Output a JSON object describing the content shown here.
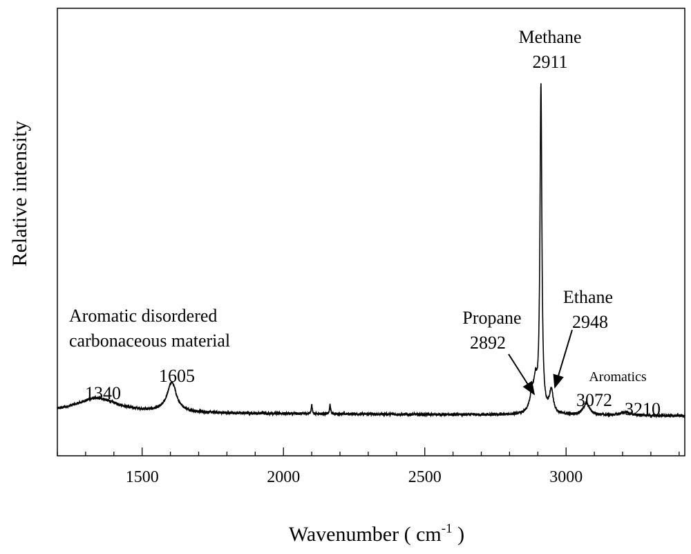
{
  "chart_data": {
    "type": "line",
    "xlabel": "Wavenumber ( cm",
    "xlabel_sup": "-1",
    "xlabel_close": " )",
    "ylabel": "Relative intensity",
    "xlim": [
      1200,
      3420
    ],
    "ylim": [
      -0.12,
      1.25
    ],
    "x_ticks": [
      1500,
      2000,
      2500,
      3000
    ],
    "x_minor_step": 100,
    "y_ticks_shown": false,
    "grid": false,
    "legend": "none",
    "line_color": "#000000",
    "peaks": [
      {
        "x": 1340,
        "height": 0.045,
        "width": 90
      },
      {
        "x": 1605,
        "height": 0.09,
        "width": 20
      },
      {
        "x": 2100,
        "height": 0.03,
        "width": 2
      },
      {
        "x": 2165,
        "height": 0.03,
        "width": 2
      },
      {
        "x": 2880,
        "height": 0.055,
        "width": 10
      },
      {
        "x": 2892,
        "height": 0.075,
        "width": 7
      },
      {
        "x": 2911,
        "height": 1.0,
        "width": 4
      },
      {
        "x": 2948,
        "height": 0.07,
        "width": 8
      },
      {
        "x": 3072,
        "height": 0.035,
        "width": 14
      },
      {
        "x": 3210,
        "height": 0.01,
        "width": 20
      }
    ],
    "annotations": [
      {
        "text": "Methane",
        "x": 2911,
        "font": 26
      },
      {
        "text": "2911",
        "x": 2911,
        "font": 26
      },
      {
        "text": "Ethane",
        "x": 2966,
        "font": 26
      },
      {
        "text": "2948",
        "x": 2966,
        "font": 26
      },
      {
        "text": "Propane",
        "x": 2780,
        "font": 26
      },
      {
        "text": "2892",
        "x": 2780,
        "font": 26
      },
      {
        "text": "Aromatics",
        "x": 3100,
        "font": 20
      },
      {
        "text": "3072",
        "x": 3082,
        "font": 26
      },
      {
        "text": "3210",
        "x": 3210,
        "font": 26
      },
      {
        "text": "1340",
        "x": 1340,
        "font": 26
      },
      {
        "text": "1605",
        "x": 1605,
        "font": 26
      },
      {
        "text": "Aromatic disordered",
        "x": 1240,
        "font": 26
      },
      {
        "text": "carbonaceous material",
        "x": 1240,
        "font": 26
      }
    ],
    "arrows": [
      {
        "from_x": 2855,
        "to_x": 2880
      },
      {
        "from_x": 2980,
        "to_x": 2948
      }
    ]
  }
}
